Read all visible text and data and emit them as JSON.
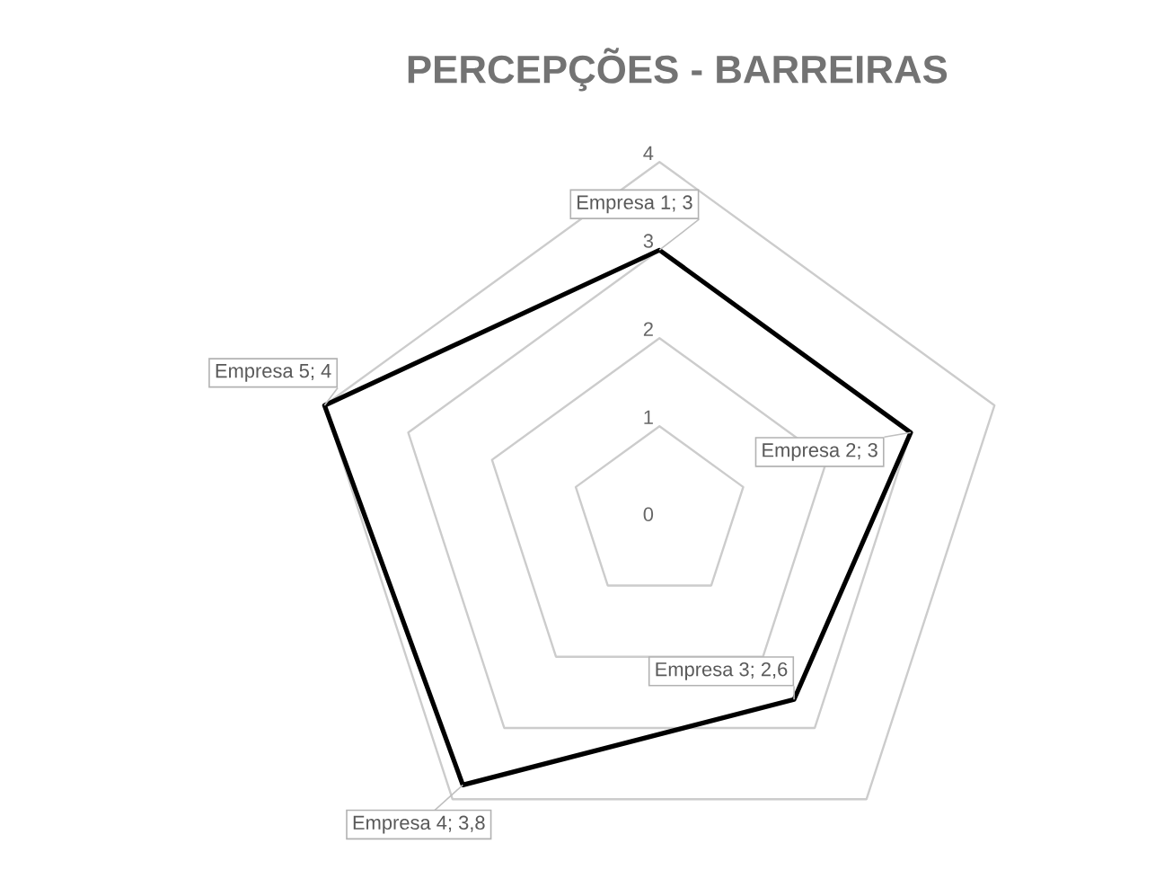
{
  "chart_data": {
    "type": "radar",
    "title": "PERCEPÇÕES - BARREIRAS",
    "categories": [
      "Empresa 1",
      "Empresa 2",
      "Empresa 3",
      "Empresa 4",
      "Empresa 5"
    ],
    "series": [
      {
        "color": "#000000",
        "values": [
          3,
          3,
          2.6,
          3.8,
          4
        ],
        "value_labels": [
          "; 3",
          "; 3",
          "; 2,6",
          "; 3,8",
          "; 4"
        ]
      }
    ],
    "ylim": [
      0,
      4
    ],
    "yticks": [
      0,
      1,
      2,
      3,
      4
    ],
    "grid": true
  }
}
